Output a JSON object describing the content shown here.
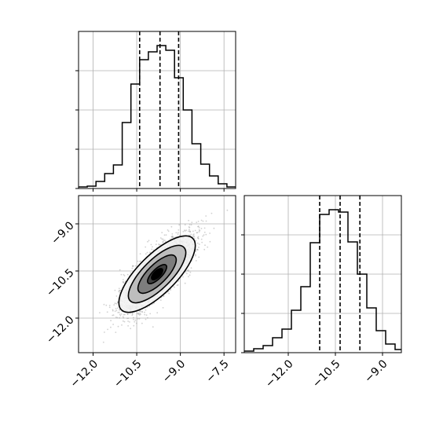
{
  "chart_data": {
    "type": "corner",
    "parameters": 2,
    "colors": {
      "line": "#000000",
      "scatter": "#9a9a9a",
      "grid": "#b0b0b0",
      "contour_fills": [
        "#f2f2f2",
        "#bdbdbd",
        "#7d7d7d",
        "#3f3f3f",
        "#000000"
      ]
    },
    "grid": true,
    "top_left_histogram": {
      "type": "histogram",
      "xlim": [
        -12.5,
        -7.1
      ],
      "bins": [
        -12.5,
        -12.2,
        -11.9,
        -11.6,
        -11.3,
        -11.0,
        -10.7,
        -10.4,
        -10.1,
        -9.8,
        -9.5,
        -9.2,
        -8.9,
        -8.6,
        -8.3,
        -8.0,
        -7.7,
        -7.4,
        -7.1
      ],
      "counts": [
        2,
        3,
        9,
        19,
        30,
        84,
        133,
        164,
        174,
        182,
        176,
        141,
        100,
        57,
        31,
        16,
        6,
        2,
        0
      ],
      "ylim": [
        0,
        200
      ],
      "quantiles": [
        -10.4,
        -9.7,
        -9.06
      ],
      "tick_labels_visible": false
    },
    "bottom_right_histogram": {
      "type": "histogram",
      "xlim": [
        -13.4,
        -8.4
      ],
      "bins": [
        -13.4,
        -13.1,
        -12.8,
        -12.5,
        -12.2,
        -11.9,
        -11.6,
        -11.3,
        -11.0,
        -10.7,
        -10.4,
        -10.1,
        -9.8,
        -9.5,
        -9.2,
        -8.9,
        -8.6,
        -8.4
      ],
      "counts": [
        2,
        5,
        9,
        19,
        30,
        54,
        84,
        140,
        176,
        182,
        179,
        141,
        100,
        57,
        28,
        11,
        4,
        2
      ],
      "ylim": [
        0,
        200
      ],
      "quantiles": [
        -11.0,
        -10.35,
        -9.72
      ],
      "x_ticks": [
        "−12.0",
        "−10.5",
        "−9.0"
      ]
    },
    "scatter_2d": {
      "type": "scatter_contour",
      "xlim": [
        -12.5,
        -7.1
      ],
      "ylim": [
        -13.1,
        -8.1
      ],
      "x_ticks": [
        "−12.0",
        "−10.5",
        "−9.0",
        "−7.5"
      ],
      "y_ticks": [
        "−9.0",
        "−10.5",
        "−12.0"
      ],
      "mean": [
        -9.8,
        -10.6
      ],
      "std": [
        0.62,
        0.62
      ],
      "correlation": 0.78,
      "contour_levels_sigma": [
        0.5,
        1.0,
        1.5,
        2.0
      ]
    }
  }
}
